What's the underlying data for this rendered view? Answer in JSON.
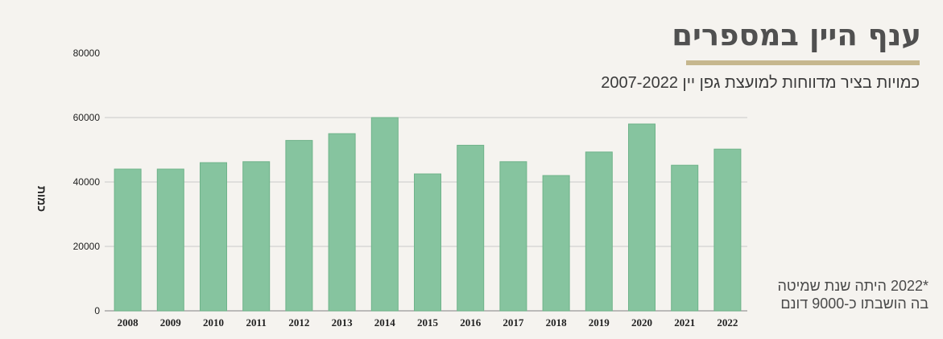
{
  "header": {
    "title": "ענף היין במספרים",
    "subtitle": "כמויות בציר מדווחות למועצת גפן יין 2007-2022"
  },
  "note": {
    "line1": "*2022 היתה שנת שמיטה",
    "line2": "בה הושבתו כ-9000 דונם"
  },
  "colors": {
    "bar": "#86c49f",
    "bar_edge": "#6fb38a",
    "grid": "#c9c9c9",
    "accent": "#c6b78e"
  },
  "chart_data": {
    "type": "bar",
    "title": "ענף היין במספרים",
    "subtitle": "כמויות בציר מדווחות למועצת גפן יין 2007-2022",
    "ylabel": "כמות",
    "xlabel": "",
    "ylim": [
      0,
      80000
    ],
    "yticks": [
      0,
      20000,
      40000,
      60000,
      80000
    ],
    "grid": true,
    "categories": [
      "2008",
      "2009",
      "2010",
      "2011",
      "2012",
      "2013",
      "2014",
      "2015",
      "2016",
      "2017",
      "2018",
      "2019",
      "2020",
      "2021",
      "2022"
    ],
    "values": [
      44000,
      44000,
      46000,
      46300,
      52900,
      55000,
      60000,
      42500,
      51400,
      46300,
      42000,
      49300,
      58000,
      45200,
      50200
    ]
  }
}
